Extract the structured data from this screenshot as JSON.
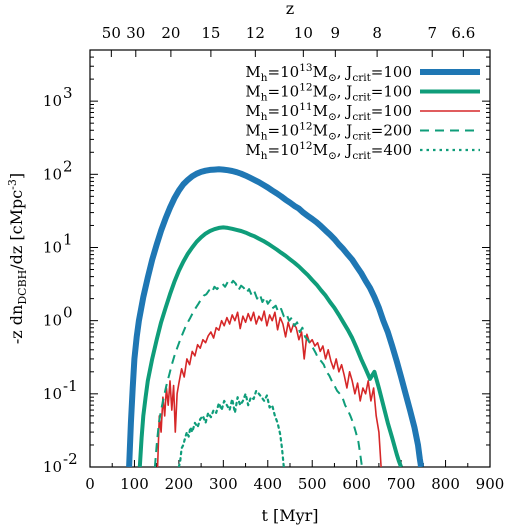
{
  "chart_data": {
    "type": "line",
    "title": "",
    "xlabel": "t [Myr]",
    "ylabel_parts": {
      "pre": "-z dn",
      "sub": "DCBH",
      "mid": "/dz [cMpc",
      "sup": "-3",
      "post": "]"
    },
    "top_xlabel": "z",
    "xlim": [
      0,
      900
    ],
    "ylim": [
      0.01,
      5000
    ],
    "yscale": "log",
    "x_ticks": [
      0,
      100,
      200,
      300,
      400,
      500,
      600,
      700,
      800,
      900
    ],
    "x_tick_labels": [
      "0",
      "100",
      "200",
      "300",
      "400",
      "500",
      "600",
      "700",
      "800",
      "900"
    ],
    "y_ticks": [
      0.01,
      0.1,
      1,
      10,
      100,
      1000
    ],
    "y_tick_labels": [
      {
        "base": "10",
        "exp": "-2"
      },
      {
        "base": "10",
        "exp": "-1"
      },
      {
        "base": "10",
        "exp": "0"
      },
      {
        "base": "10",
        "exp": "1"
      },
      {
        "base": "10",
        "exp": "2"
      },
      {
        "base": "10",
        "exp": "3"
      }
    ],
    "top_ticks": [
      {
        "label": "50",
        "t": 48
      },
      {
        "label": "30",
        "t": 103
      },
      {
        "label": "20",
        "t": 182
      },
      {
        "label": "15",
        "t": 272
      },
      {
        "label": "12",
        "t": 372
      },
      {
        "label": "10",
        "t": 480
      },
      {
        "label": "9",
        "t": 552
      },
      {
        "label": "8",
        "t": 646
      },
      {
        "label": "7",
        "t": 770
      },
      {
        "label": "6.6",
        "t": 840
      }
    ],
    "legend_position": "top-right",
    "series": [
      {
        "legend": {
          "m_exp": "13",
          "j": "100"
        },
        "color": "#1f77b4",
        "style": "solid",
        "width": 6,
        "x": [
          88,
          92,
          96,
          100,
          105,
          110,
          120,
          130,
          140,
          150,
          160,
          170,
          180,
          190,
          200,
          210,
          220,
          230,
          240,
          250,
          260,
          270,
          280,
          290,
          300,
          310,
          320,
          330,
          340,
          350,
          360,
          370,
          380,
          390,
          400,
          410,
          420,
          430,
          440,
          450,
          460,
          470,
          480,
          490,
          500,
          510,
          520,
          530,
          540,
          550,
          560,
          570,
          580,
          590,
          600,
          610,
          620,
          630,
          640,
          650,
          660,
          670,
          680,
          690,
          700,
          710,
          720,
          730,
          738,
          742,
          745
        ],
        "y": [
          0.01,
          0.04,
          0.12,
          0.3,
          0.6,
          1.0,
          2.1,
          3.9,
          6.8,
          11,
          17,
          25,
          35,
          47,
          60,
          73,
          84,
          94,
          102,
          108,
          112,
          115,
          116,
          117,
          116,
          114,
          111,
          107,
          102,
          96,
          90,
          84,
          78,
          72,
          66,
          60,
          55,
          50,
          45,
          41,
          37,
          34,
          30,
          27,
          24.5,
          22,
          19.5,
          17,
          15,
          13,
          11,
          9.5,
          8,
          6.8,
          5.5,
          4.5,
          3.5,
          2.8,
          2.1,
          1.5,
          1.0,
          0.7,
          0.45,
          0.28,
          0.17,
          0.1,
          0.06,
          0.035,
          0.02,
          0.013,
          0.01
        ]
      },
      {
        "legend": {
          "m_exp": "12",
          "j": "100"
        },
        "color": "#0f9d7a",
        "style": "solid",
        "width": 4,
        "x": [
          112,
          116,
          120,
          125,
          130,
          140,
          150,
          160,
          170,
          180,
          190,
          200,
          210,
          220,
          230,
          240,
          250,
          260,
          270,
          280,
          290,
          300,
          310,
          320,
          330,
          340,
          350,
          360,
          370,
          380,
          390,
          400,
          410,
          420,
          430,
          440,
          450,
          460,
          470,
          480,
          490,
          500,
          510,
          520,
          530,
          540,
          550,
          560,
          570,
          580,
          590,
          600,
          610,
          620,
          630,
          640,
          650,
          660,
          670,
          680,
          690,
          695,
          700
        ],
        "y": [
          0.01,
          0.025,
          0.05,
          0.09,
          0.15,
          0.3,
          0.55,
          0.95,
          1.5,
          2.3,
          3.4,
          4.8,
          6.4,
          8.2,
          10,
          12,
          13.8,
          15.5,
          16.8,
          17.8,
          18.5,
          18.8,
          18.5,
          18,
          17.4,
          16.8,
          16,
          15,
          14.2,
          13.2,
          12.3,
          11.3,
          10.3,
          9.4,
          8.5,
          7.7,
          6.9,
          6.2,
          5.5,
          4.8,
          4.2,
          3.6,
          3.1,
          2.6,
          2.2,
          1.8,
          1.5,
          1.2,
          0.95,
          0.75,
          0.58,
          0.42,
          0.3,
          0.22,
          0.16,
          0.2,
          0.12,
          0.07,
          0.04,
          0.025,
          0.015,
          0.012,
          0.01
        ]
      },
      {
        "legend": {
          "m_exp": "11",
          "j": "100"
        },
        "color": "#d62728",
        "style": "solid",
        "width": 1.6,
        "x": [
          152,
          156,
          160,
          164,
          168,
          172,
          176,
          180,
          184,
          188,
          192,
          196,
          200,
          206,
          212,
          218,
          224,
          230,
          236,
          242,
          248,
          254,
          260,
          266,
          272,
          278,
          284,
          290,
          296,
          302,
          308,
          314,
          320,
          326,
          332,
          338,
          344,
          350,
          356,
          362,
          368,
          374,
          380,
          386,
          392,
          398,
          404,
          410,
          416,
          422,
          428,
          434,
          440,
          446,
          452,
          458,
          464,
          470,
          476,
          482,
          488,
          494,
          500,
          506,
          512,
          518,
          524,
          530,
          536,
          542,
          548,
          554,
          560,
          566,
          572,
          578,
          584,
          590,
          596,
          602,
          608,
          614,
          620,
          626,
          632,
          638,
          644,
          650,
          655
        ],
        "y": [
          0.01,
          0.05,
          0.03,
          0.09,
          0.05,
          0.12,
          0.07,
          0.15,
          0.06,
          0.13,
          0.03,
          0.1,
          0.14,
          0.22,
          0.17,
          0.3,
          0.25,
          0.38,
          0.33,
          0.47,
          0.42,
          0.55,
          0.5,
          0.62,
          0.7,
          0.58,
          0.8,
          0.74,
          1.0,
          0.85,
          1.1,
          0.9,
          1.2,
          1.0,
          1.3,
          0.78,
          1.15,
          0.95,
          1.25,
          1.0,
          1.3,
          0.9,
          1.15,
          1.0,
          1.35,
          0.85,
          1.2,
          1.0,
          1.3,
          0.75,
          1.1,
          0.9,
          0.6,
          0.95,
          0.7,
          0.9,
          0.8,
          0.55,
          0.7,
          0.3,
          0.65,
          0.5,
          0.55,
          0.45,
          0.5,
          0.38,
          0.45,
          0.3,
          0.4,
          0.28,
          0.22,
          0.3,
          0.2,
          0.25,
          0.18,
          0.12,
          0.2,
          0.15,
          0.1,
          0.14,
          0.08,
          0.12,
          0.1,
          0.15,
          0.08,
          0.12,
          0.05,
          0.03,
          0.01
        ]
      },
      {
        "legend": {
          "m_exp": "12",
          "j": "200"
        },
        "color": "#0f9d7a",
        "style": "dashed",
        "width": 2,
        "x": [
          146,
          150,
          155,
          160,
          166,
          172,
          178,
          184,
          190,
          196,
          202,
          208,
          214,
          220,
          226,
          232,
          238,
          244,
          250,
          256,
          262,
          268,
          274,
          280,
          286,
          292,
          298,
          304,
          310,
          316,
          322,
          328,
          334,
          340,
          346,
          352,
          358,
          364,
          370,
          376,
          382,
          388,
          394,
          400,
          406,
          412,
          418,
          424,
          430,
          436,
          442,
          448,
          454,
          460,
          466,
          472,
          478,
          484,
          490,
          496,
          502,
          508,
          514,
          520,
          526,
          532,
          538,
          544,
          550,
          556,
          562,
          568,
          574,
          580,
          586,
          592,
          598,
          604,
          608,
          612
        ],
        "y": [
          0.01,
          0.02,
          0.04,
          0.06,
          0.09,
          0.13,
          0.18,
          0.25,
          0.33,
          0.42,
          0.53,
          0.65,
          0.8,
          0.95,
          1.1,
          1.3,
          1.5,
          1.7,
          1.95,
          2.2,
          2.3,
          2.6,
          2.4,
          2.9,
          2.7,
          3.0,
          3.2,
          2.9,
          3.4,
          3.1,
          3.5,
          3.2,
          2.6,
          3.0,
          2.8,
          2.4,
          2.7,
          2.2,
          2.5,
          2.0,
          2.3,
          1.8,
          2.1,
          1.7,
          1.9,
          1.5,
          1.6,
          1.3,
          1.45,
          1.15,
          1.25,
          1.0,
          1.1,
          0.85,
          0.95,
          0.7,
          0.8,
          0.6,
          0.55,
          0.48,
          0.42,
          0.36,
          0.3,
          0.28,
          0.25,
          0.2,
          0.18,
          0.15,
          0.13,
          0.11,
          0.1,
          0.09,
          0.07,
          0.06,
          0.05,
          0.04,
          0.03,
          0.022,
          0.015,
          0.01
        ]
      },
      {
        "legend": {
          "m_exp": "12",
          "j": "400"
        },
        "color": "#0f9d7a",
        "style": "dotted",
        "width": 2.2,
        "x": [
          200,
          203,
          206,
          210,
          214,
          218,
          222,
          226,
          230,
          236,
          242,
          248,
          254,
          260,
          266,
          272,
          278,
          284,
          290,
          296,
          302,
          308,
          314,
          320,
          326,
          332,
          338,
          344,
          350,
          356,
          362,
          368,
          374,
          380,
          386,
          392,
          398,
          404,
          410,
          416,
          422,
          428,
          432,
          436
        ],
        "y": [
          0.01,
          0.012,
          0.018,
          0.02,
          0.025,
          0.03,
          0.026,
          0.035,
          0.03,
          0.04,
          0.035,
          0.045,
          0.05,
          0.04,
          0.055,
          0.048,
          0.06,
          0.055,
          0.075,
          0.06,
          0.08,
          0.07,
          0.06,
          0.085,
          0.055,
          0.09,
          0.07,
          0.08,
          0.1,
          0.07,
          0.09,
          0.085,
          0.11,
          0.1,
          0.09,
          0.08,
          0.095,
          0.065,
          0.07,
          0.05,
          0.04,
          0.028,
          0.018,
          0.01
        ]
      }
    ]
  }
}
